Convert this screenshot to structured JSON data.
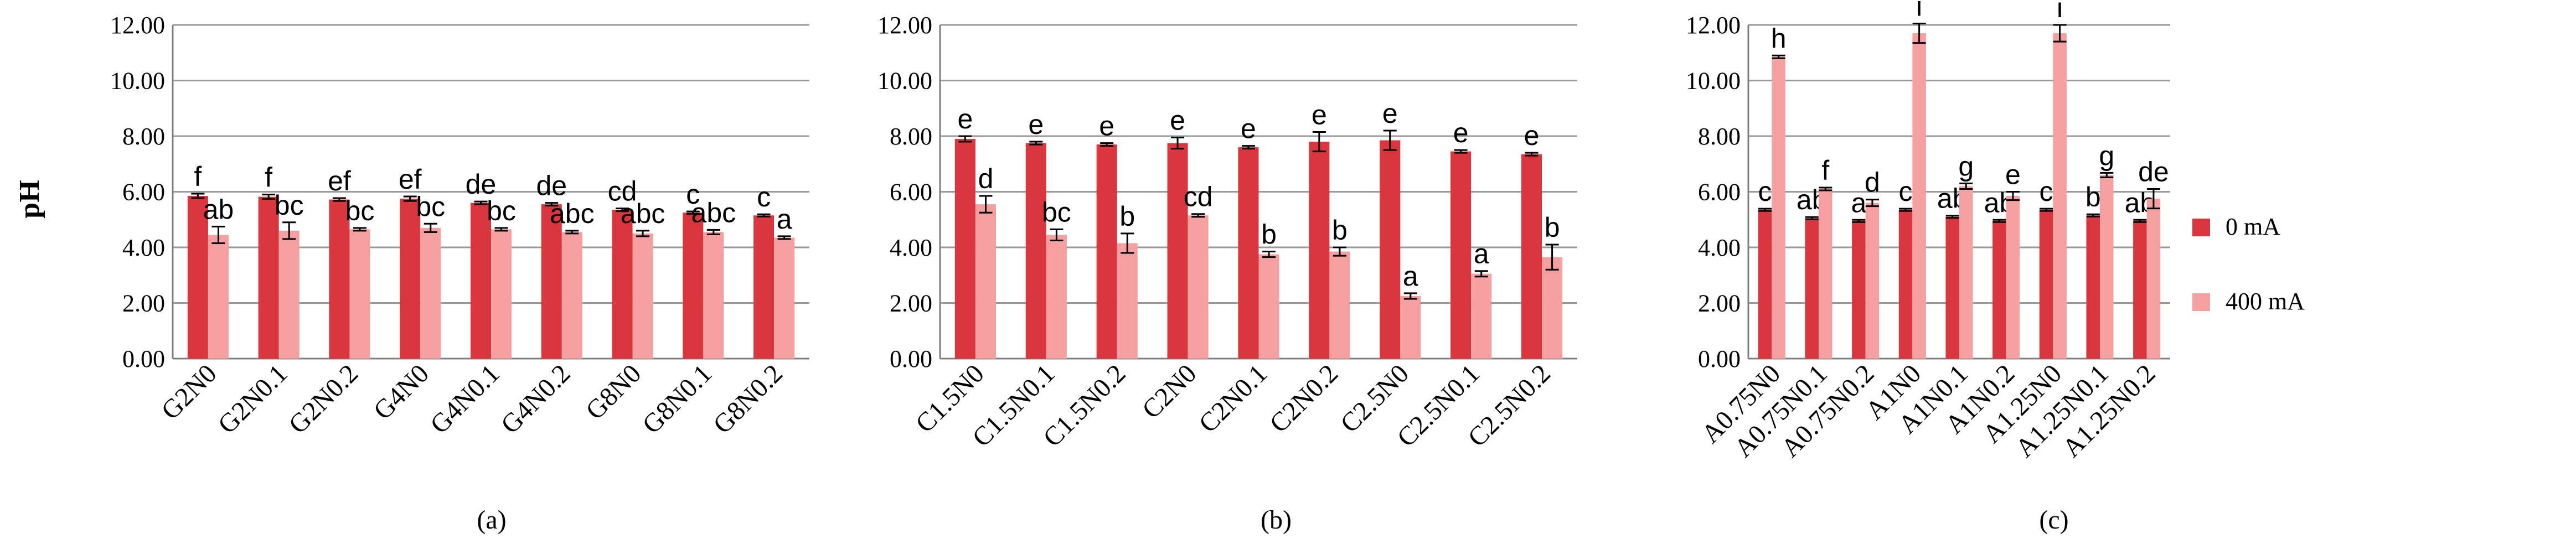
{
  "y_axis_label": "pH",
  "legend": [
    {
      "label": "0 mA",
      "color": "#d9363e"
    },
    {
      "label": "400 mA",
      "color": "#f4a0a0"
    }
  ],
  "chart_data": [
    {
      "type": "bar",
      "panel_label": "(a)",
      "categories": [
        "G2N0",
        "G2N0.1",
        "G2N0.2",
        "G4N0",
        "G4N0.1",
        "G4N0.2",
        "G8N0",
        "G8N0.1",
        "G8N0.2"
      ],
      "ylim": [
        0,
        12
      ],
      "yticks": [
        "0.00",
        "2.00",
        "4.00",
        "6.00",
        "8.00",
        "10.00",
        "12.00"
      ],
      "ylabel": "pH",
      "grid": true,
      "series": [
        {
          "name": "0 mA",
          "color": "#d9363e",
          "values": [
            5.85,
            5.82,
            5.72,
            5.75,
            5.6,
            5.55,
            5.35,
            5.25,
            5.15
          ],
          "errors": [
            0.08,
            0.08,
            0.05,
            0.08,
            0.05,
            0.05,
            0.05,
            0.04,
            0.04
          ],
          "letters": [
            "f",
            "f",
            "ef",
            "ef",
            "de",
            "de",
            "cd",
            "c",
            "c"
          ]
        },
        {
          "name": "400 mA",
          "color": "#f4a0a0",
          "values": [
            4.45,
            4.6,
            4.65,
            4.7,
            4.65,
            4.55,
            4.5,
            4.55,
            4.35
          ],
          "errors": [
            0.3,
            0.3,
            0.05,
            0.15,
            0.05,
            0.05,
            0.1,
            0.08,
            0.05
          ],
          "letters": [
            "ab",
            "bc",
            "bc",
            "bc",
            "bc",
            "abc",
            "abc",
            "abc",
            "a"
          ]
        }
      ]
    },
    {
      "type": "bar",
      "panel_label": "(b)",
      "categories": [
        "C1.5N0",
        "C1.5N0.1",
        "C1.5N0.2",
        "C2N0",
        "C2N0.1",
        "C2N0.2",
        "C2.5N0",
        "C2.5N0.1",
        "C2.5N0.2"
      ],
      "ylim": [
        0,
        12
      ],
      "yticks": [
        "0.00",
        "2.00",
        "4.00",
        "6.00",
        "8.00",
        "10.00",
        "12.00"
      ],
      "grid": true,
      "series": [
        {
          "name": "0 mA",
          "color": "#d9363e",
          "values": [
            7.9,
            7.75,
            7.7,
            7.75,
            7.6,
            7.8,
            7.85,
            7.45,
            7.35
          ],
          "errors": [
            0.1,
            0.05,
            0.05,
            0.2,
            0.05,
            0.35,
            0.35,
            0.05,
            0.05
          ],
          "letters": [
            "e",
            "e",
            "e",
            "e",
            "e",
            "e",
            "e",
            "e",
            "e"
          ]
        },
        {
          "name": "400 mA",
          "color": "#f4a0a0",
          "values": [
            5.55,
            4.45,
            4.15,
            5.15,
            3.75,
            3.85,
            2.25,
            3.05,
            3.65
          ],
          "errors": [
            0.3,
            0.2,
            0.35,
            0.05,
            0.1,
            0.15,
            0.1,
            0.1,
            0.45
          ],
          "letters": [
            "d",
            "bc",
            "b",
            "cd",
            "b",
            "b",
            "a",
            "a",
            "b"
          ]
        }
      ]
    },
    {
      "type": "bar",
      "panel_label": "(c)",
      "categories": [
        "A0.75N0",
        "A0.75N0.1",
        "A0.75N0.2",
        "A1N0",
        "A1N0.1",
        "A1N0.2",
        "A1.25N0",
        "A1.25N0.1",
        "A1.25N0.2"
      ],
      "ylim": [
        0,
        12
      ],
      "yticks": [
        "0.00",
        "2.00",
        "4.00",
        "6.00",
        "8.00",
        "10.00",
        "12.00"
      ],
      "grid": true,
      "series": [
        {
          "name": "0 mA",
          "color": "#d9363e",
          "values": [
            5.35,
            5.05,
            4.95,
            5.35,
            5.1,
            4.95,
            5.35,
            5.15,
            4.95
          ],
          "errors": [
            0.04,
            0.04,
            0.04,
            0.04,
            0.04,
            0.04,
            0.04,
            0.04,
            0.04
          ],
          "letters": [
            "c",
            "ab",
            "a",
            "c",
            "ab",
            "ab",
            "c",
            "b",
            "ab"
          ]
        },
        {
          "name": "400 mA",
          "color": "#f4a0a0",
          "values": [
            10.85,
            6.1,
            5.6,
            11.7,
            6.2,
            5.85,
            11.7,
            6.6,
            5.75
          ],
          "errors": [
            0.05,
            0.05,
            0.12,
            0.35,
            0.1,
            0.15,
            0.3,
            0.08,
            0.35
          ],
          "letters": [
            "h",
            "f",
            "d",
            "i",
            "g",
            "e",
            "i",
            "g",
            "de"
          ]
        }
      ]
    }
  ]
}
